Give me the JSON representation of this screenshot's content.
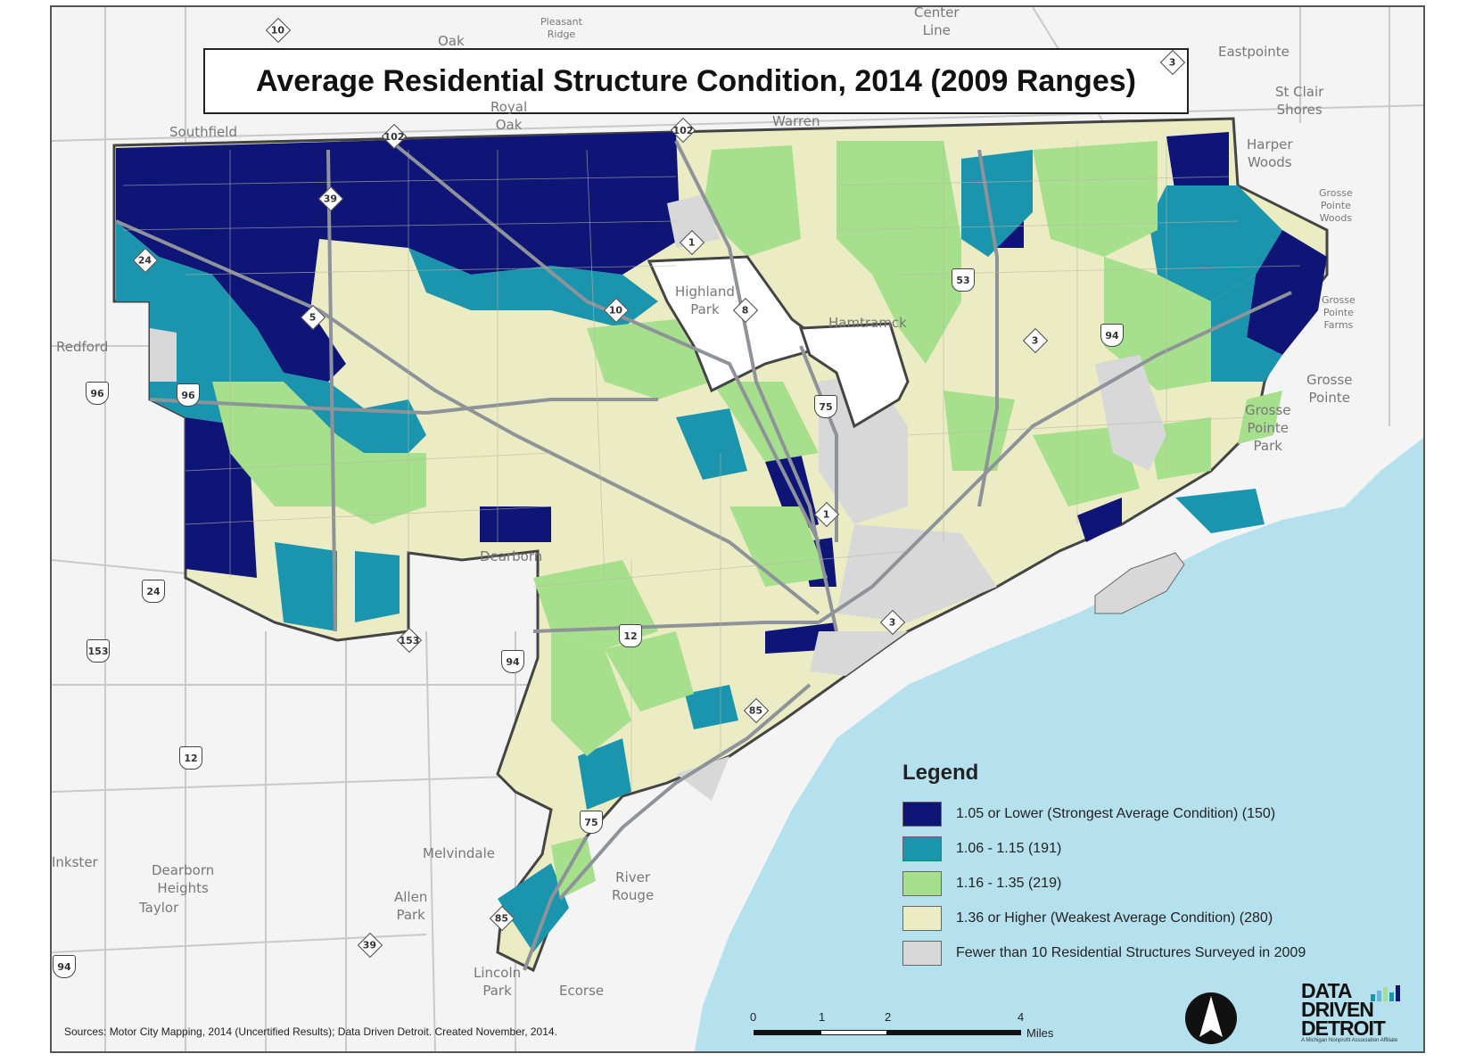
{
  "title": "Average Residential Structure Condition, 2014 (2009 Ranges)",
  "colors": {
    "class_1": "#0f1577",
    "class_2": "#1b94ae",
    "class_3": "#a6e08c",
    "class_4": "#ebecc3",
    "class_nodata": "#d8d8d8",
    "water": "#b5e1ee",
    "roads": "#9aa0a6",
    "background": "#f4f4f4"
  },
  "legend": {
    "title": "Legend",
    "items": [
      {
        "label": "1.05 or Lower (Strongest Average Condition) (150)",
        "color": "#0f1577"
      },
      {
        "label": "1.06 - 1.15 (191)",
        "color": "#1b94ae"
      },
      {
        "label": "1.16 - 1.35 (219)",
        "color": "#a6e08c"
      },
      {
        "label": "1.36 or Higher (Weakest Average Condition) (280)",
        "color": "#ebecc3"
      },
      {
        "label": "Fewer than 10 Residential Structures Surveyed in 2009",
        "color": "#d8d8d8"
      }
    ]
  },
  "place_labels": {
    "oak": "Oak",
    "pleasant_ridge": "Pleasant\nRidge",
    "center_line": "Center\nLine",
    "eastpointe": "Eastpointe",
    "st_clair_shores": "St Clair\nShores",
    "royal_oak": "Royal\nOak",
    "warren": "Warren",
    "southfield": "Southfield",
    "harper_woods": "Harper\nWoods",
    "grosse_pointe_woods": "Grosse\nPointe\nWoods",
    "grosse_pointe_farms": "Grosse\nPointe\nFarms",
    "grosse_pointe": "Grosse\nPointe",
    "grosse_pointe_park": "Grosse\nPointe\nPark",
    "highland_park": "Highland\nPark",
    "hamtramck": "Hamtramck",
    "redford": "Redford",
    "dearborn": "Dearborn",
    "melvindale": "Melvindale",
    "river_rouge": "River\nRouge",
    "inkster": "Inkster",
    "dearborn_heights": "Dearborn\nHeights",
    "allen_park": "Allen\nPark",
    "taylor": "Taylor",
    "lincoln_park": "Lincoln\nPark",
    "ecorse": "Ecorse"
  },
  "route_shields": [
    "10",
    "3",
    "102",
    "102",
    "39",
    "1",
    "24",
    "5",
    "10",
    "8",
    "53",
    "3",
    "94",
    "96",
    "96",
    "75",
    "1",
    "3",
    "24",
    "153",
    "153",
    "94",
    "12",
    "85",
    "12",
    "75",
    "85",
    "39",
    "94"
  ],
  "sources": "Sources: Motor City Mapping, 2014 (Uncertified Results); Data Driven Detroit. Created November, 2014.",
  "scale": {
    "ticks": [
      "0",
      "1",
      "2",
      "4"
    ],
    "unit": "Miles"
  },
  "logo": {
    "line1": "DATA",
    "line2": "DRIVEN",
    "line3": "DETROIT",
    "tagline": "A Michigan Nonprofit Association Affiliate"
  }
}
